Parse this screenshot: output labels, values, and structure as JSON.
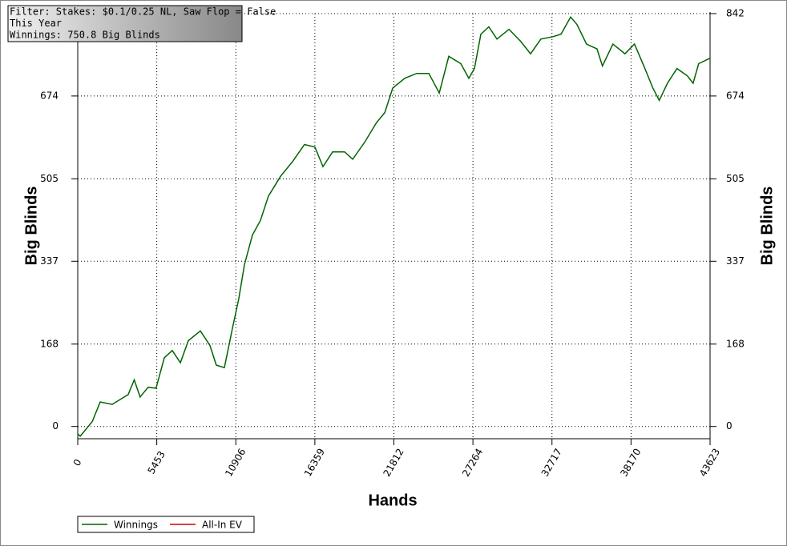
{
  "chart_data": {
    "type": "line",
    "info": [
      "Filter: Stakes: $0.1/0.25 NL, Saw Flop = False",
      "This Year",
      "Winnings: 750.8 Big Blinds"
    ],
    "xlabel": "Hands",
    "ylabel": "Big Blinds",
    "x": [
      0,
      170,
      1000,
      1550,
      2380,
      3480,
      3900,
      4300,
      4860,
      5400,
      5970,
      6520,
      7080,
      7630,
      8460,
      9120,
      9560,
      10120,
      10670,
      11110,
      11500,
      12050,
      12600,
      13160,
      13990,
      14810,
      15640,
      16360,
      16920,
      17580,
      18410,
      18970,
      19800,
      20620,
      21180,
      21730,
      22560,
      23390,
      24220,
      24940,
      25600,
      26430,
      26980,
      27370,
      27810,
      28360,
      28920,
      29750,
      30570,
      31240,
      31950,
      32780,
      33340,
      34000,
      34440,
      35100,
      35820,
      36200,
      36920,
      37750,
      38410,
      39130,
      39680,
      40120,
      40680,
      41340,
      42060,
      42450,
      42840,
      43623
    ],
    "series": [
      {
        "name": "Winnings",
        "color": "#006400",
        "values": [
          -15,
          -20,
          10,
          50,
          45,
          65,
          95,
          60,
          80,
          78,
          140,
          155,
          130,
          175,
          195,
          165,
          125,
          120,
          200,
          260,
          330,
          390,
          420,
          470,
          510,
          540,
          575,
          570,
          530,
          560,
          560,
          545,
          580,
          620,
          640,
          690,
          710,
          720,
          720,
          680,
          755,
          740,
          710,
          730,
          800,
          815,
          790,
          810,
          785,
          760,
          790,
          795,
          800,
          835,
          820,
          780,
          770,
          735,
          780,
          760,
          780,
          730,
          690,
          665,
          700,
          730,
          715,
          700,
          740,
          751
        ]
      },
      {
        "name": "All-In EV",
        "color": "#d00000",
        "values": [
          null,
          null,
          null,
          null,
          null,
          null,
          null,
          null,
          null,
          null,
          null,
          null,
          null,
          null,
          null,
          null,
          null,
          null,
          null,
          null,
          null,
          null,
          null,
          null,
          null,
          null,
          null,
          null,
          null,
          null,
          null,
          null,
          null,
          null,
          null,
          null,
          null,
          null,
          null,
          null,
          null,
          null,
          null,
          null,
          null,
          null,
          null,
          null,
          null,
          null,
          null,
          null,
          null,
          null,
          null,
          null,
          null,
          null,
          null,
          null,
          null,
          null,
          null,
          null,
          null,
          null,
          null,
          null,
          null,
          null
        ]
      }
    ],
    "xlim": [
      0,
      43623
    ],
    "xticks": [
      0,
      5453,
      10906,
      16359,
      21812,
      27264,
      32717,
      38170,
      43623
    ],
    "ylim": [
      -25,
      842
    ],
    "yticks": [
      0,
      168,
      337,
      505,
      674,
      842
    ],
    "grid": true
  }
}
